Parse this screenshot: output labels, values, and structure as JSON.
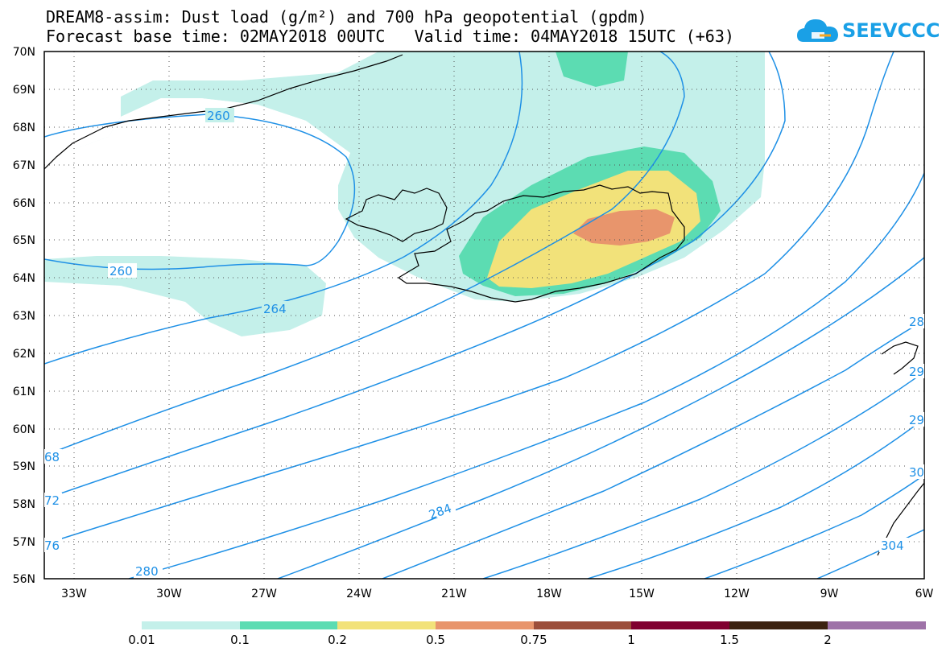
{
  "title": {
    "line1": "DREAM8-assim: Dust load (g/m²) and 700 hPa geopotential (gpdm)",
    "line2_base_label": "Forecast base time: 02MAY2018 00UTC",
    "line2_valid_label": "Valid time: 04MAY2018 15UTC (+63)"
  },
  "logo": {
    "text": "SEEVCCC",
    "icon": "cloud-icon"
  },
  "map": {
    "lon_range": [
      -34,
      -6
    ],
    "lat_range": [
      56,
      70
    ],
    "lat_ticks": [
      "70N",
      "69N",
      "68N",
      "67N",
      "66N",
      "65N",
      "64N",
      "63N",
      "62N",
      "61N",
      "60N",
      "59N",
      "58N",
      "57N",
      "56N"
    ],
    "lon_ticks": [
      "33W",
      "30W",
      "27W",
      "24W",
      "21W",
      "18W",
      "15W",
      "12W",
      "9W",
      "6W"
    ],
    "contour_labels": [
      "260",
      "260",
      "264",
      "68",
      "72",
      "76",
      "280",
      "284",
      "28",
      "29",
      "29",
      "30",
      "304"
    ],
    "geopotential_color": "#1e90e6",
    "coast_color": "#000000"
  },
  "colorbar": {
    "labels": [
      "0.01",
      "0.1",
      "0.2",
      "0.5",
      "0.75",
      "1",
      "1.5",
      "2"
    ],
    "colors": [
      "#c4f0ea",
      "#5cdcb2",
      "#f2e27a",
      "#e8956c",
      "#9c4e3a",
      "#800030",
      "#3c2210",
      "#9e72a8"
    ]
  }
}
